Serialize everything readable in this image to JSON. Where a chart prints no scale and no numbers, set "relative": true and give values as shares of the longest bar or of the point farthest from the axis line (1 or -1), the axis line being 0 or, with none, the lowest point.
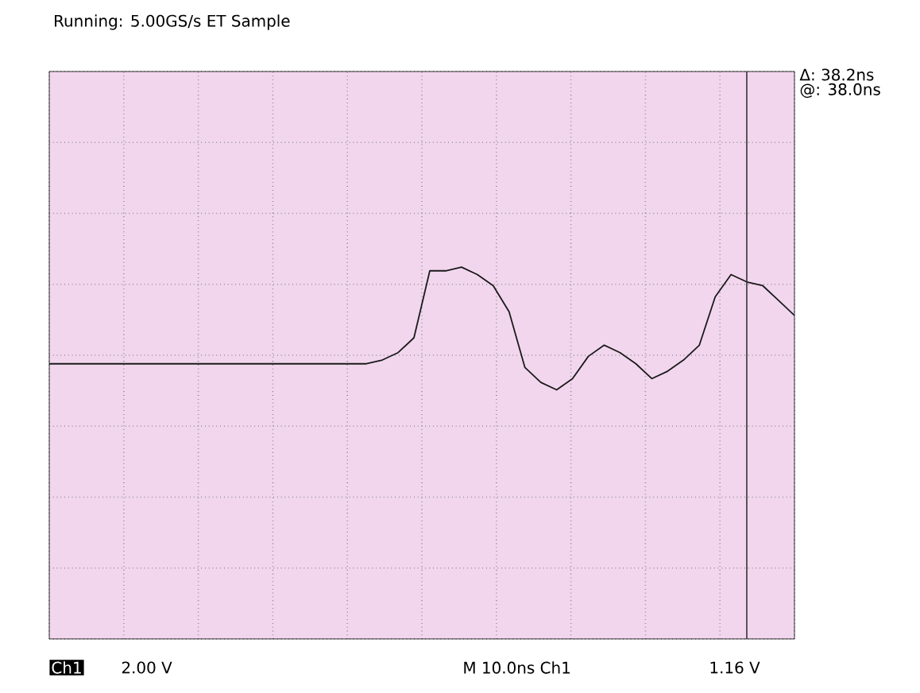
{
  "chart_data": {
    "type": "line",
    "relative": true,
    "title": "Running: 5.00GS/s ET  Sample",
    "categories": [
      null,
      null,
      null,
      null,
      null,
      null,
      null,
      null,
      null,
      null,
      null,
      null,
      null,
      null,
      null,
      null,
      null,
      null,
      null,
      null,
      null,
      null,
      null,
      null,
      null,
      null,
      null,
      null,
      null,
      null,
      null,
      null,
      null,
      null,
      null,
      null,
      null,
      null,
      null,
      null,
      null,
      null,
      null,
      null,
      null,
      null,
      null,
      null
    ],
    "series": [
      {
        "color": "#1a1a1a",
        "values": [
          0.74,
          0.74,
          0.74,
          0.74,
          0.74,
          0.74,
          0.74,
          0.74,
          0.74,
          0.74,
          0.74,
          0.74,
          0.74,
          0.74,
          0.74,
          0.74,
          0.74,
          0.74,
          0.74,
          0.74,
          0.74,
          0.75,
          0.77,
          0.81,
          0.99,
          0.99,
          1.0,
          0.98,
          0.95,
          0.88,
          0.73,
          0.69,
          0.67,
          0.7,
          0.76,
          0.79,
          0.77,
          0.74,
          0.7,
          0.72,
          0.75,
          0.79,
          0.92,
          0.98,
          0.96,
          0.95,
          0.91,
          0.87
        ]
      }
    ],
    "annotations": [
      "Δ: 38.2ns",
      "@: 38.0ns",
      "Ch1",
      "2.00 V",
      "M 10.0ns  Ch1",
      "1.16 V"
    ],
    "grid": true,
    "marker": "none",
    "line_style": "solid"
  }
}
